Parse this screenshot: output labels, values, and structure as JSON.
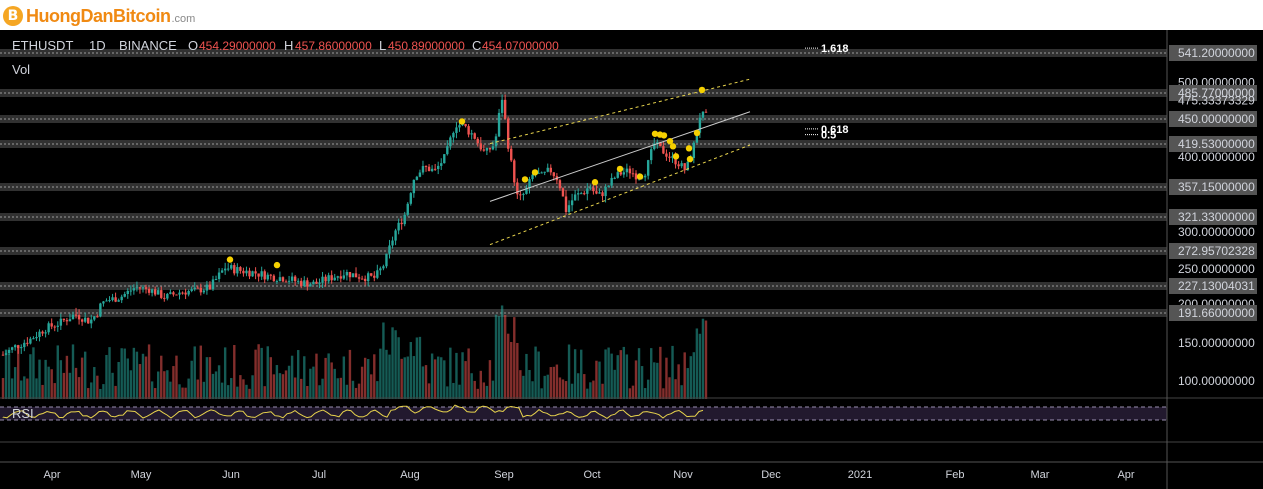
{
  "brand": {
    "name": "HuongDanBitcoin",
    "tld": ".com",
    "mark": "B"
  },
  "header": {
    "symbol": "ETHUSDT",
    "interval": "1D",
    "exchange": "BINANCE",
    "open_label": "O",
    "open": "454.29000000",
    "high_label": "H",
    "high": "457.86000000",
    "low_label": "L",
    "low": "450.89000000",
    "close_label": "C",
    "close": "454.07000000",
    "volume_label": "Vol"
  },
  "indicators": {
    "rsi_label": "RSI"
  },
  "colors": {
    "background": "#000000",
    "up": "#26a69a",
    "down": "#ef5350",
    "channel": "#e8d44d",
    "marker": "#f5d000",
    "fib": "#ffffff",
    "rsi": "#e8d44d",
    "level_band": "#5a5a5a"
  },
  "chart_data": {
    "type": "candlestick",
    "price_scale_labels": [
      "541.20000000",
      "500.00000000",
      "485.77000000",
      "475.33373329",
      "450.00000000",
      "419.53000000",
      "400.00000000",
      "357.15000000",
      "321.33000000",
      "300.00000000",
      "272.95702328",
      "250.00000000",
      "227.13004031",
      "200.00000000",
      "191.66000000",
      "150.00000000",
      "100.00000000"
    ],
    "horizontal_levels": [
      541.2,
      485.77,
      450.0,
      419.53,
      357.15,
      321.33,
      272.957,
      227.13,
      191.66
    ],
    "fib_labels": [
      {
        "label": "1.618",
        "price": 548.0
      },
      {
        "label": "0.618",
        "price": 438.0
      },
      {
        "label": "0.5",
        "price": 431.0
      }
    ],
    "x_labels": [
      "Apr",
      "May",
      "Jun",
      "Jul",
      "Aug",
      "Sep",
      "Oct",
      "Nov",
      "Dec",
      "2021",
      "Feb",
      "Mar",
      "Apr"
    ],
    "channel": {
      "upper": [
        [
          490,
          420
        ],
        [
          750,
          505
        ]
      ],
      "middle": [
        [
          490,
          340
        ],
        [
          750,
          460
        ]
      ],
      "lower": [
        [
          490,
          282
        ],
        [
          750,
          418
        ]
      ]
    },
    "markers": [
      [
        230,
        262
      ],
      [
        277,
        255
      ],
      [
        462,
        447
      ],
      [
        525,
        368
      ],
      [
        535,
        378
      ],
      [
        595,
        364
      ],
      [
        620,
        383
      ],
      [
        640,
        372
      ],
      [
        655,
        432
      ],
      [
        660,
        431
      ],
      [
        664,
        430
      ],
      [
        670,
        423
      ],
      [
        673,
        416
      ],
      [
        676,
        401
      ],
      [
        689,
        413
      ],
      [
        690,
        397
      ],
      [
        697,
        433
      ],
      [
        702,
        490
      ]
    ],
    "approx_price_path": [
      [
        0,
        132
      ],
      [
        15,
        145
      ],
      [
        30,
        155
      ],
      [
        45,
        170
      ],
      [
        60,
        178
      ],
      [
        75,
        190
      ],
      [
        90,
        180
      ],
      [
        105,
        205
      ],
      [
        120,
        210
      ],
      [
        135,
        225
      ],
      [
        150,
        222
      ],
      [
        165,
        210
      ],
      [
        180,
        218
      ],
      [
        195,
        220
      ],
      [
        210,
        225
      ],
      [
        225,
        252
      ],
      [
        240,
        248
      ],
      [
        255,
        245
      ],
      [
        270,
        240
      ],
      [
        285,
        238
      ],
      [
        300,
        232
      ],
      [
        315,
        230
      ],
      [
        330,
        238
      ],
      [
        345,
        245
      ],
      [
        360,
        240
      ],
      [
        375,
        238
      ],
      [
        385,
        258
      ],
      [
        395,
        300
      ],
      [
        405,
        325
      ],
      [
        415,
        375
      ],
      [
        425,
        385
      ],
      [
        435,
        380
      ],
      [
        445,
        400
      ],
      [
        455,
        445
      ],
      [
        465,
        440
      ],
      [
        475,
        428
      ],
      [
        485,
        405
      ],
      [
        495,
        420
      ],
      [
        502,
        480
      ],
      [
        510,
        400
      ],
      [
        518,
        340
      ],
      [
        526,
        352
      ],
      [
        534,
        378
      ],
      [
        542,
        372
      ],
      [
        550,
        382
      ],
      [
        558,
        368
      ],
      [
        566,
        330
      ],
      [
        574,
        345
      ],
      [
        582,
        350
      ],
      [
        590,
        358
      ],
      [
        598,
        345
      ],
      [
        606,
        355
      ],
      [
        614,
        370
      ],
      [
        622,
        378
      ],
      [
        630,
        380
      ],
      [
        638,
        372
      ],
      [
        646,
        380
      ],
      [
        654,
        420
      ],
      [
        662,
        410
      ],
      [
        670,
        400
      ],
      [
        678,
        392
      ],
      [
        686,
        380
      ],
      [
        694,
        418
      ],
      [
        700,
        455
      ],
      [
        705,
        454
      ]
    ],
    "rsi": {
      "overbought": 70,
      "oversold": 30,
      "ylim": [
        0,
        100
      ]
    }
  }
}
